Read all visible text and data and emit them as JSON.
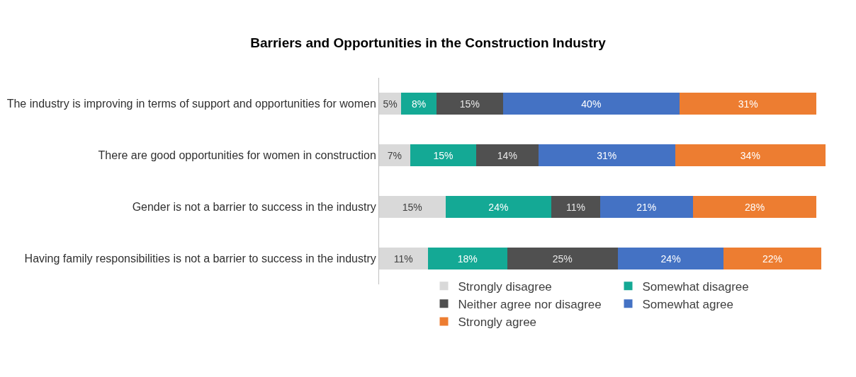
{
  "chart_data": {
    "type": "bar",
    "orientation": "horizontal",
    "stacked": true,
    "title": "Barriers and Opportunities in the Construction Industry",
    "categories": [
      "The industry is improving in terms of support and opportunities for women",
      "There are good opportunities for women in construction",
      "Gender is not a barrier to success in the industry",
      "Having family responsibilities is not a barrier to success in the industry"
    ],
    "series": [
      {
        "name": "Strongly disagree",
        "color": "#d9d9d9",
        "values": [
          5,
          7,
          15,
          11
        ],
        "value_labels": [
          "5%",
          "7%",
          "15%",
          "11%"
        ]
      },
      {
        "name": "Somewhat disagree",
        "color": "#14a995",
        "values": [
          8,
          15,
          24,
          18
        ],
        "value_labels": [
          "8%",
          "15%",
          "24%",
          "18%"
        ]
      },
      {
        "name": "Neither agree nor disagree",
        "color": "#505050",
        "values": [
          15,
          14,
          11,
          25
        ],
        "value_labels": [
          "15%",
          "14%",
          "11%",
          "25%"
        ]
      },
      {
        "name": "Somewhat agree",
        "color": "#4472c4",
        "values": [
          40,
          31,
          21,
          24
        ],
        "value_labels": [
          "40%",
          "31%",
          "21%",
          "24%"
        ]
      },
      {
        "name": "Strongly agree",
        "color": "#ed7d31",
        "values": [
          31,
          34,
          28,
          22
        ],
        "value_labels": [
          "31%",
          "34%",
          "28%",
          "22%"
        ]
      }
    ],
    "legend": "bottom"
  }
}
